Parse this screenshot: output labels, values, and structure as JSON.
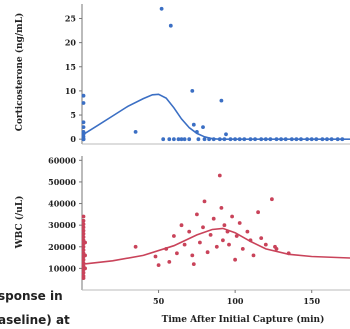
{
  "caption_lines": [
    "sponse in",
    "aseline) at"
  ],
  "chart_data": [
    {
      "type": "scatter",
      "ylabel": "Corticosterone (ng/mL)",
      "ylim": [
        -1,
        28
      ],
      "yticks": [
        0,
        5,
        10,
        15,
        20,
        25
      ],
      "xlim": [
        0,
        175
      ],
      "point_color": "#3b6fc4",
      "line_color": "#3b6fc4",
      "points": [
        {
          "x": 1,
          "y": 9
        },
        {
          "x": 1,
          "y": 7.5
        },
        {
          "x": 1,
          "y": 3.5
        },
        {
          "x": 1,
          "y": 2.5
        },
        {
          "x": 1,
          "y": 1.5
        },
        {
          "x": 1,
          "y": 1
        },
        {
          "x": 1,
          "y": 0.5
        },
        {
          "x": 1,
          "y": 0
        },
        {
          "x": 1,
          "y": 0
        },
        {
          "x": 1,
          "y": 0
        },
        {
          "x": 35,
          "y": 1.5
        },
        {
          "x": 52,
          "y": 27
        },
        {
          "x": 58,
          "y": 23.5
        },
        {
          "x": 72,
          "y": 10
        },
        {
          "x": 73,
          "y": 3
        },
        {
          "x": 75,
          "y": 1.5
        },
        {
          "x": 79,
          "y": 2.5
        },
        {
          "x": 91,
          "y": 8
        },
        {
          "x": 94,
          "y": 1
        },
        {
          "x": 53,
          "y": 0
        },
        {
          "x": 57,
          "y": 0
        },
        {
          "x": 60,
          "y": 0
        },
        {
          "x": 63,
          "y": 0
        },
        {
          "x": 65,
          "y": 0
        },
        {
          "x": 67,
          "y": 0
        },
        {
          "x": 70,
          "y": 0
        },
        {
          "x": 76,
          "y": 0
        },
        {
          "x": 80,
          "y": 0
        },
        {
          "x": 83,
          "y": 0
        },
        {
          "x": 86,
          "y": 0
        },
        {
          "x": 90,
          "y": 0
        },
        {
          "x": 93,
          "y": 0
        },
        {
          "x": 97,
          "y": 0
        },
        {
          "x": 100,
          "y": 0
        },
        {
          "x": 103,
          "y": 0
        },
        {
          "x": 106,
          "y": 0
        },
        {
          "x": 110,
          "y": 0
        },
        {
          "x": 113,
          "y": 0
        },
        {
          "x": 117,
          "y": 0
        },
        {
          "x": 120,
          "y": 0
        },
        {
          "x": 123,
          "y": 0
        },
        {
          "x": 127,
          "y": 0
        },
        {
          "x": 130,
          "y": 0
        },
        {
          "x": 133,
          "y": 0
        },
        {
          "x": 137,
          "y": 0
        },
        {
          "x": 140,
          "y": 0
        },
        {
          "x": 143,
          "y": 0
        },
        {
          "x": 147,
          "y": 0
        },
        {
          "x": 150,
          "y": 0
        },
        {
          "x": 153,
          "y": 0
        },
        {
          "x": 157,
          "y": 0
        },
        {
          "x": 160,
          "y": 0
        },
        {
          "x": 163,
          "y": 0
        },
        {
          "x": 167,
          "y": 0
        },
        {
          "x": 170,
          "y": 0
        }
      ],
      "trend": [
        {
          "x": 1,
          "y": 1
        },
        {
          "x": 10,
          "y": 2.8
        },
        {
          "x": 20,
          "y": 4.8
        },
        {
          "x": 30,
          "y": 6.8
        },
        {
          "x": 40,
          "y": 8.4
        },
        {
          "x": 46,
          "y": 9.2
        },
        {
          "x": 50,
          "y": 9.3
        },
        {
          "x": 55,
          "y": 8.5
        },
        {
          "x": 60,
          "y": 6.5
        },
        {
          "x": 65,
          "y": 4.2
        },
        {
          "x": 70,
          "y": 2.4
        },
        {
          "x": 75,
          "y": 1.2
        },
        {
          "x": 80,
          "y": 0.5
        },
        {
          "x": 85,
          "y": 0.1
        },
        {
          "x": 90,
          "y": 0
        },
        {
          "x": 175,
          "y": 0
        }
      ]
    },
    {
      "type": "scatter",
      "ylabel": "WBC (/uL)",
      "xlabel": "Time After Initial Capture (min)",
      "ylim": [
        0,
        62000
      ],
      "yticks": [
        10000,
        20000,
        30000,
        40000,
        50000,
        60000
      ],
      "xlim": [
        0,
        175
      ],
      "xticks": [
        50,
        100,
        150
      ],
      "point_color": "#c9435a",
      "line_color": "#c9435a",
      "points": [
        {
          "x": 1,
          "y": 34000
        },
        {
          "x": 1,
          "y": 32000
        },
        {
          "x": 1,
          "y": 30500
        },
        {
          "x": 1,
          "y": 29000
        },
        {
          "x": 1,
          "y": 27500
        },
        {
          "x": 1,
          "y": 26000
        },
        {
          "x": 1,
          "y": 24500
        },
        {
          "x": 1,
          "y": 23000
        },
        {
          "x": 1,
          "y": 21500
        },
        {
          "x": 1,
          "y": 20000
        },
        {
          "x": 1,
          "y": 18500
        },
        {
          "x": 1,
          "y": 17000
        },
        {
          "x": 1,
          "y": 15500
        },
        {
          "x": 1,
          "y": 14000
        },
        {
          "x": 1,
          "y": 12500
        },
        {
          "x": 1,
          "y": 11000
        },
        {
          "x": 1,
          "y": 9500
        },
        {
          "x": 1,
          "y": 8000
        },
        {
          "x": 1,
          "y": 6500
        },
        {
          "x": 1,
          "y": 5500
        },
        {
          "x": 2,
          "y": 22000
        },
        {
          "x": 2,
          "y": 16000
        },
        {
          "x": 2,
          "y": 10000
        },
        {
          "x": 35,
          "y": 20000
        },
        {
          "x": 48,
          "y": 15500
        },
        {
          "x": 50,
          "y": 11500
        },
        {
          "x": 55,
          "y": 19000
        },
        {
          "x": 57,
          "y": 13000
        },
        {
          "x": 60,
          "y": 25000
        },
        {
          "x": 62,
          "y": 17000
        },
        {
          "x": 65,
          "y": 30000
        },
        {
          "x": 67,
          "y": 21000
        },
        {
          "x": 70,
          "y": 27000
        },
        {
          "x": 72,
          "y": 16000
        },
        {
          "x": 73,
          "y": 12000
        },
        {
          "x": 75,
          "y": 35000
        },
        {
          "x": 77,
          "y": 22000
        },
        {
          "x": 79,
          "y": 29000
        },
        {
          "x": 80,
          "y": 41000
        },
        {
          "x": 82,
          "y": 17500
        },
        {
          "x": 84,
          "y": 25500
        },
        {
          "x": 86,
          "y": 33000
        },
        {
          "x": 88,
          "y": 20000
        },
        {
          "x": 90,
          "y": 53000
        },
        {
          "x": 91,
          "y": 38000
        },
        {
          "x": 92,
          "y": 23000
        },
        {
          "x": 93,
          "y": 30000
        },
        {
          "x": 95,
          "y": 27000
        },
        {
          "x": 96,
          "y": 21000
        },
        {
          "x": 98,
          "y": 34000
        },
        {
          "x": 100,
          "y": 14000
        },
        {
          "x": 101,
          "y": 25000
        },
        {
          "x": 103,
          "y": 31000
        },
        {
          "x": 105,
          "y": 19000
        },
        {
          "x": 108,
          "y": 27000
        },
        {
          "x": 110,
          "y": 23000
        },
        {
          "x": 112,
          "y": 16000
        },
        {
          "x": 115,
          "y": 36000
        },
        {
          "x": 117,
          "y": 24000
        },
        {
          "x": 120,
          "y": 21000
        },
        {
          "x": 124,
          "y": 42000
        },
        {
          "x": 126,
          "y": 20000
        },
        {
          "x": 127,
          "y": 19000
        },
        {
          "x": 135,
          "y": 17000
        }
      ],
      "trend": [
        {
          "x": 1,
          "y": 12000
        },
        {
          "x": 20,
          "y": 13500
        },
        {
          "x": 40,
          "y": 16000
        },
        {
          "x": 60,
          "y": 20500
        },
        {
          "x": 75,
          "y": 25500
        },
        {
          "x": 85,
          "y": 28000
        },
        {
          "x": 92,
          "y": 28500
        },
        {
          "x": 100,
          "y": 26500
        },
        {
          "x": 110,
          "y": 22500
        },
        {
          "x": 120,
          "y": 19000
        },
        {
          "x": 135,
          "y": 16500
        },
        {
          "x": 150,
          "y": 15500
        },
        {
          "x": 175,
          "y": 14800
        }
      ]
    }
  ]
}
